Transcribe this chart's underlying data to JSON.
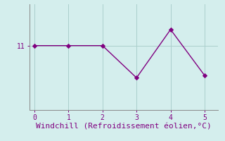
{
  "x": [
    0,
    1,
    2,
    3,
    4,
    5
  ],
  "y": [
    11,
    11,
    11,
    10.3,
    11.35,
    10.35
  ],
  "line_color": "#800080",
  "marker": "D",
  "marker_size": 3,
  "background_color": "#d4eeed",
  "grid_color": "#aacfcc",
  "axis_color": "#888888",
  "tick_color": "#800080",
  "xlabel": "Windchill (Refroidissement éolien,°C)",
  "xlabel_color": "#800080",
  "xlabel_fontsize": 8,
  "ytick_labels": [
    "11"
  ],
  "ytick_values": [
    11
  ],
  "xlim": [
    -0.15,
    5.4
  ],
  "ylim": [
    9.6,
    11.9
  ],
  "figsize": [
    3.2,
    2.0
  ],
  "dpi": 100
}
